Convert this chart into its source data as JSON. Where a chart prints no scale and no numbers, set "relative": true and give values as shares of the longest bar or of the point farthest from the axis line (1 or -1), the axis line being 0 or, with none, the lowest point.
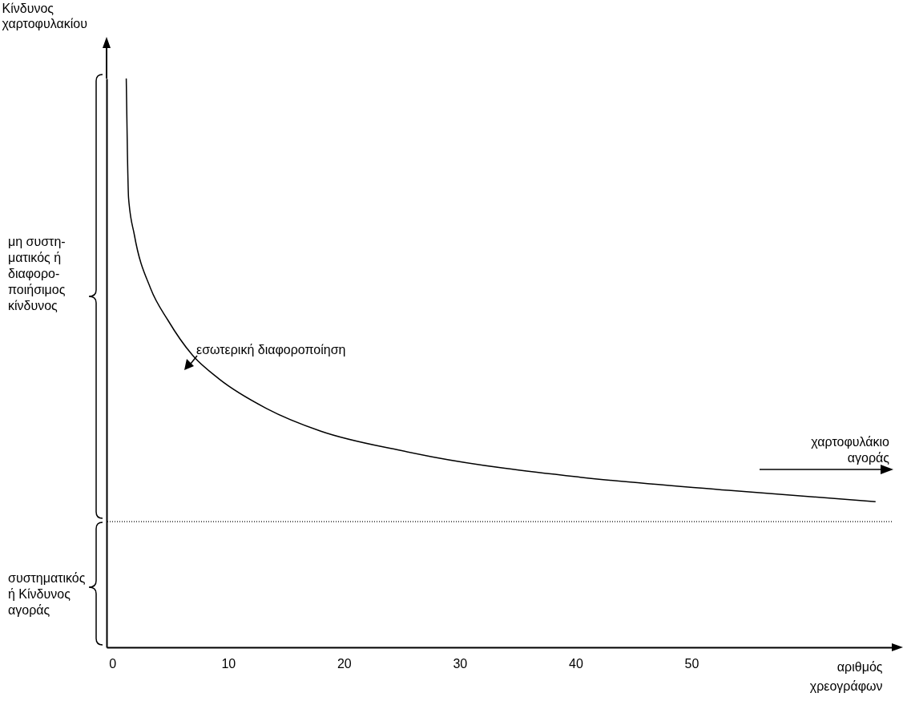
{
  "chart_data": {
    "type": "line",
    "relative": true,
    "xlabel": "αριθμός χρεογράφων",
    "ylabel": "Κίνδυνος χαρτοφυλακίου",
    "xlim": [
      -0.5,
      67.3
    ],
    "xticks": [
      0,
      10,
      20,
      30,
      40,
      50
    ],
    "x": [
      1.2,
      1.3,
      1.4,
      1.9,
      3.3,
      4.8,
      6.9,
      9.2,
      13.3,
      18.0,
      24.9,
      27.6,
      40.4,
      53.2,
      65.9
    ],
    "series": [
      {
        "color": "#000000",
        "values": [
          1.0,
          0.87,
          0.79,
          0.725,
          0.631,
          0.575,
          0.514,
          0.472,
          0.42,
          0.38,
          0.346,
          0.335,
          0.299,
          0.276,
          0.256
        ]
      }
    ],
    "ref_lines": [
      {
        "axis": "y",
        "value": 0.221,
        "line_style": "dotted",
        "color": "#000000"
      }
    ],
    "annotations": [
      "μη συστη-ματικός ή διαφορο-ποιήσιμος κίνδυνος",
      "συστηματικός ή Κίνδυνος αγοράς",
      "εσωτερική διαφοροποίηση",
      "χαρτοφυλάκιο αγοράς"
    ]
  }
}
